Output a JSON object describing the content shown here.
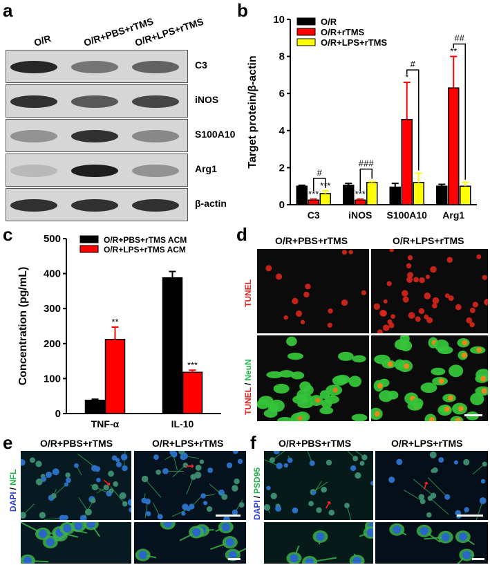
{
  "panels": {
    "a": {
      "label": "a",
      "columns": [
        "O/R",
        "O/R+PBS+rTMS",
        "O/R+LPS+rTMS"
      ],
      "rows": [
        "C3",
        "iNOS",
        "S100A10",
        "Arg1",
        "β-actin"
      ]
    },
    "b": {
      "label": "b"
    },
    "c": {
      "label": "c"
    },
    "d": {
      "label": "d",
      "columns": [
        "O/R+PBS+rTMS",
        "O/R+LPS+rTMS"
      ],
      "row1_label": "TUNEL",
      "row2_label_a": "TUNEL",
      "row2_label_sep": "/",
      "row2_label_b": "NeuN"
    },
    "e": {
      "label": "e",
      "columns": [
        "O/R+PBS+rTMS",
        "O/R+LPS+rTMS"
      ],
      "side_a": "DAPI",
      "side_sep": "/",
      "side_b": "NFL"
    },
    "f": {
      "label": "f",
      "columns": [
        "O/R+PBS+rTMS",
        "O/R+LPS+rTMS"
      ],
      "side_a": "DAPI",
      "side_sep": "/",
      "side_b": "PSD95"
    }
  },
  "colors": {
    "black_series": "#000000",
    "red_series": "#ff0000",
    "yellow_series": "#ffff00",
    "tunel_red": "#e0201a",
    "neun_green": "#2ecc40",
    "dapi_blue": "#2a3bd6"
  },
  "chart_data": [
    {
      "type": "bar",
      "panel": "b",
      "categories": [
        "C3",
        "iNOS",
        "S100A10",
        "Arg1"
      ],
      "ylabel": "Target protein/β-actin",
      "ylim": [
        0,
        10
      ],
      "yticks": [
        "0",
        "2",
        "4",
        "6",
        "8",
        "10"
      ],
      "legend": "top-left",
      "series": [
        {
          "name": "O/R",
          "values": [
            1.0,
            1.05,
            0.95,
            1.0
          ],
          "errors": [
            0.05,
            0.1,
            0.2,
            0.1
          ]
        },
        {
          "name": "O/R+rTMS",
          "values": [
            0.25,
            0.25,
            4.6,
            6.3
          ],
          "errors": [
            0.05,
            0.05,
            2.0,
            1.7
          ]
        },
        {
          "name": "O/R+LPS+rTMS",
          "values": [
            0.6,
            1.2,
            1.2,
            1.0
          ],
          "errors": [
            0.15,
            0.05,
            0.5,
            0.2
          ]
        }
      ],
      "annotations": {
        "bar_stars": [
          {
            "category": "C3",
            "series": "O/R+rTMS",
            "text": "***"
          },
          {
            "category": "C3",
            "series": "O/R+LPS+rTMS",
            "text": "***"
          },
          {
            "category": "iNOS",
            "series": "O/R+rTMS",
            "text": "***"
          },
          {
            "category": "S100A10",
            "series": "O/R+rTMS",
            "text": "*"
          },
          {
            "category": "Arg1",
            "series": "O/R+rTMS",
            "text": "**"
          }
        ],
        "brackets": [
          {
            "category": "C3",
            "text": "#"
          },
          {
            "category": "iNOS",
            "text": "###"
          },
          {
            "category": "S100A10",
            "text": "#"
          },
          {
            "category": "Arg1",
            "text": "##"
          }
        ]
      }
    },
    {
      "type": "bar",
      "panel": "c",
      "categories": [
        "TNF-α",
        "IL-10"
      ],
      "ylabel": "Concentration (pg/mL)",
      "ylim": [
        0,
        500
      ],
      "yticks": [
        "0",
        "100",
        "200",
        "300",
        "400",
        "500"
      ],
      "legend": "top-left",
      "series": [
        {
          "name": "O/R+PBS+rTMS ACM",
          "values": [
            38,
            388
          ],
          "errors": [
            3,
            18
          ]
        },
        {
          "name": "O/R+LPS+rTMS ACM",
          "values": [
            212,
            118
          ],
          "errors": [
            35,
            6
          ]
        }
      ],
      "annotations": {
        "bar_stars": [
          {
            "category": "TNF-α",
            "series": "O/R+LPS+rTMS ACM",
            "text": "**"
          },
          {
            "category": "IL-10",
            "series": "O/R+LPS+rTMS ACM",
            "text": "***"
          }
        ]
      }
    }
  ]
}
